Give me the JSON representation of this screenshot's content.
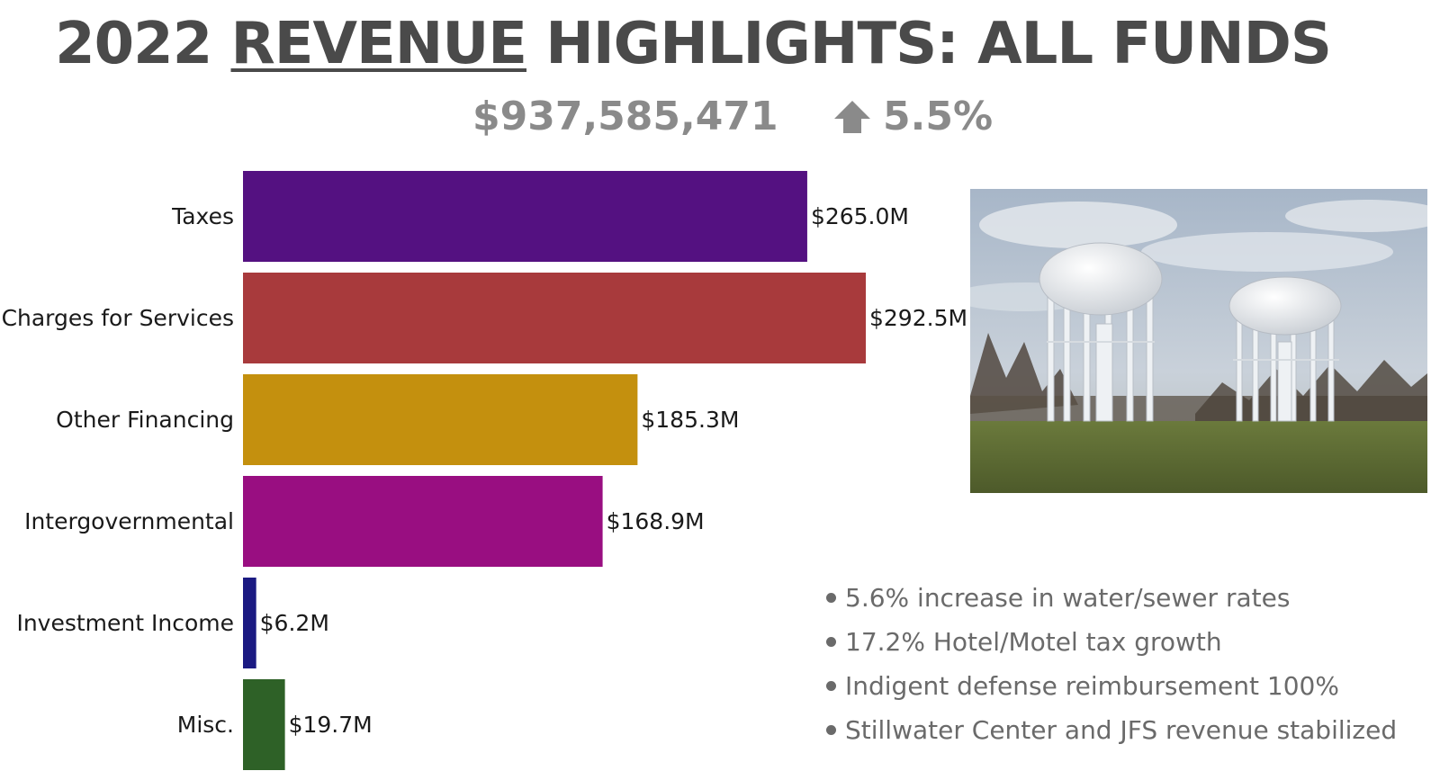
{
  "header": {
    "title_year": "2022",
    "title_underlined": "REVENUE",
    "title_rest": "HIGHLIGHTS: ALL FUNDS",
    "total": "$937,585,471",
    "change": "5.5%",
    "change_icon": "arrow-up-icon"
  },
  "chart_data": {
    "type": "bar",
    "orientation": "horizontal",
    "categories": [
      "Taxes",
      "Charges for Services",
      "Other Financing",
      "Intergovernmental",
      "Investment Income",
      "Misc."
    ],
    "values": [
      265.0,
      292.5,
      185.3,
      168.9,
      6.2,
      19.7
    ],
    "value_labels": [
      "$265.0M",
      "$292.5M",
      "$185.3M",
      "$168.9M",
      "$6.2M",
      "$19.7M"
    ],
    "colors": [
      "#541181",
      "#a83a3c",
      "#c4900e",
      "#990e81",
      "#1b1a82",
      "#2e6127"
    ],
    "xlim": [
      0,
      292.5
    ],
    "grid": false,
    "legend": "none"
  },
  "photo": {
    "subject": "water-towers-photo",
    "colors": {
      "sky": "#b9c4d1",
      "grass": "#5c6b32",
      "towers": "#f2f4f6"
    }
  },
  "highlights": [
    "5.6% increase in water/sewer rates",
    "17.2% Hotel/Motel tax growth",
    "Indigent defense reimbursement 100%",
    "Stillwater Center and JFS revenue stabilized"
  ]
}
